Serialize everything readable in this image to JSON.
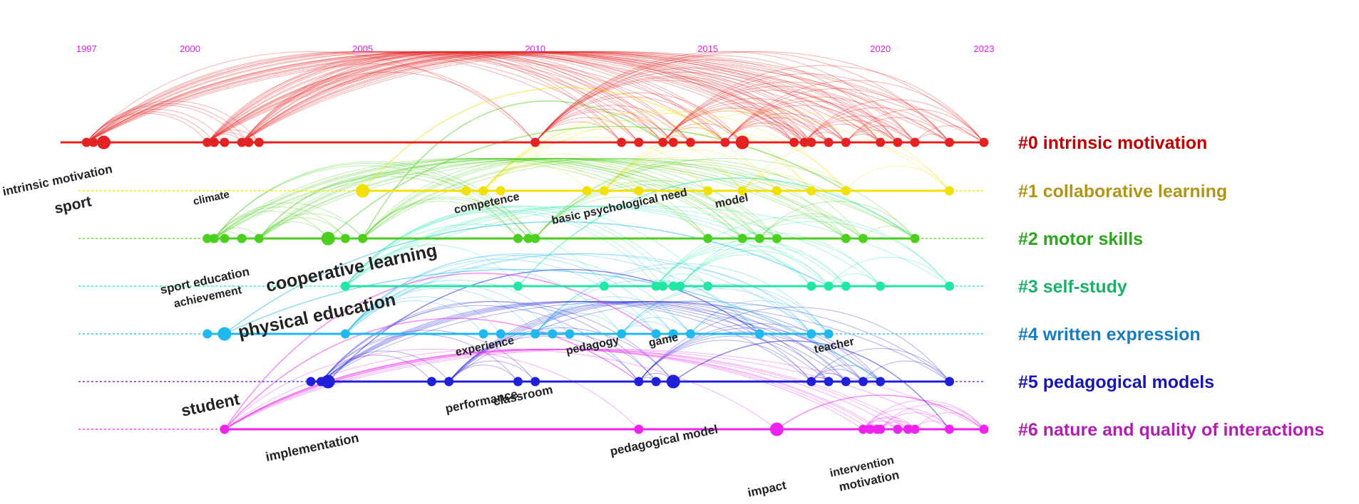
{
  "title": "",
  "years": [
    {
      "label": "1997",
      "year": 1997
    },
    {
      "label": "2000",
      "year": 2000
    },
    {
      "label": "2005",
      "year": 2005
    },
    {
      "label": "2010",
      "year": 2010
    },
    {
      "label": "2015",
      "year": 2015
    },
    {
      "label": "2020",
      "year": 2020
    },
    {
      "label": "2023",
      "year": 2023
    }
  ],
  "clusters": [
    {
      "id": 0,
      "label": "#0 intrinsic motivation",
      "color": "#e52222",
      "label_color": "#c00000",
      "nodes": [
        1997,
        1997.2,
        1997.5,
        2000.5,
        2000.7,
        2001,
        2001.5,
        2001.7,
        2002,
        2010,
        2012.5,
        2013,
        2013.7,
        2014,
        2014.5,
        2015.5,
        2016,
        2017.5,
        2017.8,
        2018,
        2018.5,
        2019,
        2020,
        2020.5,
        2021,
        2022,
        2023
      ],
      "big": [
        1997.5,
        2016
      ]
    },
    {
      "id": 1,
      "label": "#1 collaborative learning",
      "color": "#f2e000",
      "label_color": "#b0951a",
      "nodes": [
        2005,
        2008,
        2008.5,
        2009,
        2011.5,
        2012,
        2013,
        2015,
        2016,
        2017,
        2018,
        2019,
        2022
      ],
      "big": [
        2005
      ]
    },
    {
      "id": 2,
      "label": "#2 motor skills",
      "color": "#4ccf1e",
      "label_color": "#2da520",
      "nodes": [
        2000.5,
        2000.7,
        2001,
        2001.5,
        2002,
        2004,
        2004.5,
        2005,
        2009.5,
        2009.8,
        2010,
        2015,
        2016,
        2016.5,
        2017,
        2019,
        2019.5,
        2021
      ],
      "big": [
        2004
      ]
    },
    {
      "id": 3,
      "label": "#3 self-study",
      "color": "#22e6a6",
      "label_color": "#1cb06a",
      "nodes": [
        2004.5,
        2009.5,
        2012,
        2013.5,
        2013.7,
        2014,
        2014.2,
        2015,
        2018,
        2018.5,
        2019,
        2020,
        2022
      ],
      "big": []
    },
    {
      "id": 4,
      "label": "#4 written expression",
      "color": "#1fb8ef",
      "label_color": "#1a7cc0",
      "nodes": [
        2000.5,
        2001,
        2004.5,
        2008.5,
        2009,
        2010,
        2010.5,
        2011,
        2012.5,
        2013.5,
        2014,
        2014.5,
        2016.5,
        2018,
        2018.5
      ],
      "big": [
        2001
      ]
    },
    {
      "id": 5,
      "label": "#5 pedagogical models",
      "color": "#2020d8",
      "label_color": "#1818b0",
      "nodes": [
        2003.5,
        2003.8,
        2004,
        2007,
        2007.5,
        2009.5,
        2010,
        2013,
        2013.5,
        2014,
        2018,
        2018.5,
        2019,
        2019.5,
        2020,
        2022
      ],
      "big": [
        2004,
        2014
      ]
    },
    {
      "id": 6,
      "label": "#6 nature and quality of interactions",
      "color": "#ee22ee",
      "label_color": "#b020b0",
      "nodes": [
        2001,
        2013,
        2017,
        2019.5,
        2019.7,
        2019.9,
        2020,
        2020.5,
        2020.8,
        2021,
        2022,
        2023
      ],
      "big": [
        2017
      ]
    }
  ],
  "keywords": [
    {
      "text": "intrinsic motivation",
      "size": 17,
      "rotate": -12
    },
    {
      "text": "sport",
      "size": 21,
      "rotate": -12
    },
    {
      "text": "climate",
      "size": 15,
      "rotate": -12
    },
    {
      "text": "competence",
      "size": 16,
      "rotate": -12
    },
    {
      "text": "basic psychological need",
      "size": 16,
      "rotate": -12
    },
    {
      "text": "model",
      "size": 16,
      "rotate": -12
    },
    {
      "text": "sport education",
      "size": 17,
      "rotate": -12
    },
    {
      "text": "achievement",
      "size": 16,
      "rotate": -12
    },
    {
      "text": "cooperative learning",
      "size": 25,
      "rotate": -12
    },
    {
      "text": "physical education",
      "size": 25,
      "rotate": -12
    },
    {
      "text": "experience",
      "size": 16,
      "rotate": -12
    },
    {
      "text": "pedagogy",
      "size": 16,
      "rotate": -12
    },
    {
      "text": "game",
      "size": 16,
      "rotate": -12
    },
    {
      "text": "teacher",
      "size": 16,
      "rotate": -12
    },
    {
      "text": "student",
      "size": 23,
      "rotate": -12
    },
    {
      "text": "performance",
      "size": 17,
      "rotate": -12
    },
    {
      "text": "classroom",
      "size": 17,
      "rotate": -12
    },
    {
      "text": "implementation",
      "size": 18,
      "rotate": -12
    },
    {
      "text": "pedagogical model",
      "size": 17,
      "rotate": -12
    },
    {
      "text": "impact",
      "size": 17,
      "rotate": -12
    },
    {
      "text": "intervention",
      "size": 16,
      "rotate": -12
    },
    {
      "text": "motivation",
      "size": 17,
      "rotate": -12
    }
  ]
}
